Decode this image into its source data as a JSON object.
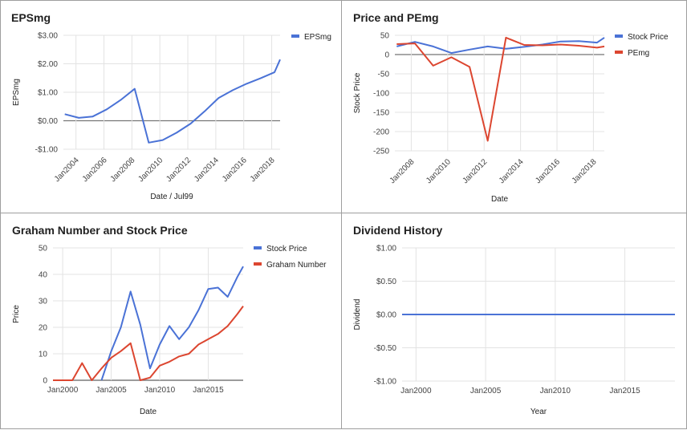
{
  "colors": {
    "blue": "#4a72d6",
    "red": "#dc4630",
    "grid": "#e3e3e3",
    "zero": "#757575"
  },
  "chart_data": [
    {
      "id": "eps",
      "type": "line",
      "title": "EPSmg",
      "xlabel": "Date / Jul99",
      "ylabel": "EPSmg",
      "xlim": [
        2003.1,
        2018.6
      ],
      "ylim": [
        -1,
        3
      ],
      "yticks": [
        3,
        2,
        1,
        0,
        -1
      ],
      "ytick_labels": [
        "$3.00",
        "$2.00",
        "$1.00",
        "$0.00",
        "-$1.00"
      ],
      "xticks": [
        2004,
        2006,
        2008,
        2010,
        2012,
        2014,
        2016,
        2018
      ],
      "xtick_labels": [
        "Jan2004",
        "Jan2006",
        "Jan2008",
        "Jan2010",
        "Jan2012",
        "Jan2014",
        "Jan2016",
        "Jan2018"
      ],
      "x_rotated": true,
      "legend": "right",
      "series": [
        {
          "name": "EPSmg",
          "color": "#4a72d6",
          "x": [
            2003.2,
            2004.2,
            2005.2,
            2006.2,
            2007.2,
            2008.2,
            2009.2,
            2010.2,
            2011.2,
            2012.2,
            2013.2,
            2014.2,
            2015.2,
            2016.2,
            2017.2,
            2018.2,
            2018.6
          ],
          "y": [
            0.23,
            0.1,
            0.15,
            0.4,
            0.73,
            1.12,
            -0.77,
            -0.68,
            -0.42,
            -0.1,
            0.33,
            0.8,
            1.07,
            1.3,
            1.49,
            1.7,
            2.15
          ]
        }
      ]
    },
    {
      "id": "pe",
      "type": "line",
      "title": "Price and PEmg",
      "xlabel": "Date",
      "ylabel": "Stock Price",
      "xlim": [
        2007.1,
        2018.6
      ],
      "ylim": [
        -250,
        50
      ],
      "yticks": [
        50,
        0,
        -50,
        -100,
        -150,
        -200,
        -250
      ],
      "ytick_labels": [
        "50",
        "0",
        "-50",
        "-100",
        "-150",
        "-200",
        "-250"
      ],
      "xticks": [
        2008,
        2010,
        2012,
        2014,
        2016,
        2018
      ],
      "xtick_labels": [
        "Jan2008",
        "Jan2010",
        "Jan2012",
        "Jan2014",
        "Jan2016",
        "Jan2018"
      ],
      "x_rotated": true,
      "legend": "right",
      "series": [
        {
          "name": "Stock Price",
          "color": "#4a72d6",
          "x": [
            2007.2,
            2008.2,
            2009.2,
            2010.2,
            2011.2,
            2012.2,
            2013.2,
            2014.2,
            2015.2,
            2016.2,
            2017.2,
            2018.2,
            2018.6
          ],
          "y": [
            21,
            33,
            21,
            4,
            13,
            21,
            15,
            20,
            26,
            34,
            35,
            31,
            44
          ]
        },
        {
          "name": "PEmg",
          "color": "#dc4630",
          "x": [
            2007.2,
            2008.2,
            2009.2,
            2010.2,
            2011.2,
            2012.2,
            2013.2,
            2014.2,
            2015.2,
            2016.2,
            2017.2,
            2018.2,
            2018.6
          ],
          "y": [
            27,
            29,
            -29,
            -7,
            -32,
            -224,
            44,
            25,
            24,
            26,
            23,
            18,
            21
          ]
        }
      ]
    },
    {
      "id": "graham",
      "type": "line",
      "title": "Graham Number and Stock Price",
      "xlabel": "Date",
      "ylabel": "Price",
      "xlim": [
        1999,
        2018.6
      ],
      "ylim": [
        0,
        50
      ],
      "yticks": [
        50,
        40,
        30,
        20,
        10,
        0
      ],
      "ytick_labels": [
        "50",
        "40",
        "30",
        "20",
        "10",
        "0"
      ],
      "xticks": [
        2000,
        2005,
        2010,
        2015
      ],
      "xtick_labels": [
        "Jan2000",
        "Jan2005",
        "Jan2010",
        "Jan2015"
      ],
      "x_rotated": false,
      "legend": "right",
      "series": [
        {
          "name": "Stock Price",
          "color": "#4a72d6",
          "x": [
            2004,
            2005,
            2006,
            2007,
            2008,
            2009,
            2010,
            2011,
            2012,
            2013,
            2014,
            2015,
            2016,
            2017,
            2018,
            2018.6
          ],
          "y": [
            0,
            11,
            20,
            33.5,
            21,
            4.5,
            13.5,
            20.5,
            15.5,
            20,
            26.5,
            34.5,
            35,
            31.5,
            39,
            43
          ]
        },
        {
          "name": "Graham Number",
          "color": "#dc4630",
          "x": [
            1999,
            2000,
            2001,
            2002,
            2003,
            2004,
            2005,
            2006,
            2007,
            2008,
            2009,
            2010,
            2011,
            2012,
            2013,
            2014,
            2015,
            2016,
            2017,
            2018,
            2018.6
          ],
          "y": [
            0,
            0,
            0,
            6.5,
            0,
            4.5,
            8.5,
            11,
            14,
            0,
            1,
            5.5,
            7,
            9,
            10,
            13.5,
            15.5,
            17.5,
            20.5,
            25,
            28
          ]
        }
      ]
    },
    {
      "id": "div",
      "type": "line",
      "title": "Dividend History",
      "xlabel": "Year",
      "ylabel": "Dividend",
      "xlim": [
        1999,
        2018.6
      ],
      "ylim": [
        -1,
        1
      ],
      "yticks": [
        1,
        0.5,
        0,
        -0.5,
        -1
      ],
      "ytick_labels": [
        "$1.00",
        "$0.50",
        "$0.00",
        "-$0.50",
        "-$1.00"
      ],
      "xticks": [
        2000,
        2005,
        2010,
        2015
      ],
      "xtick_labels": [
        "Jan2000",
        "Jan2005",
        "Jan2010",
        "Jan2015"
      ],
      "x_rotated": false,
      "legend": "none",
      "series": [
        {
          "color": "#4a72d6",
          "x": [
            1999,
            2018.6
          ],
          "y": [
            0,
            0
          ]
        }
      ]
    }
  ]
}
